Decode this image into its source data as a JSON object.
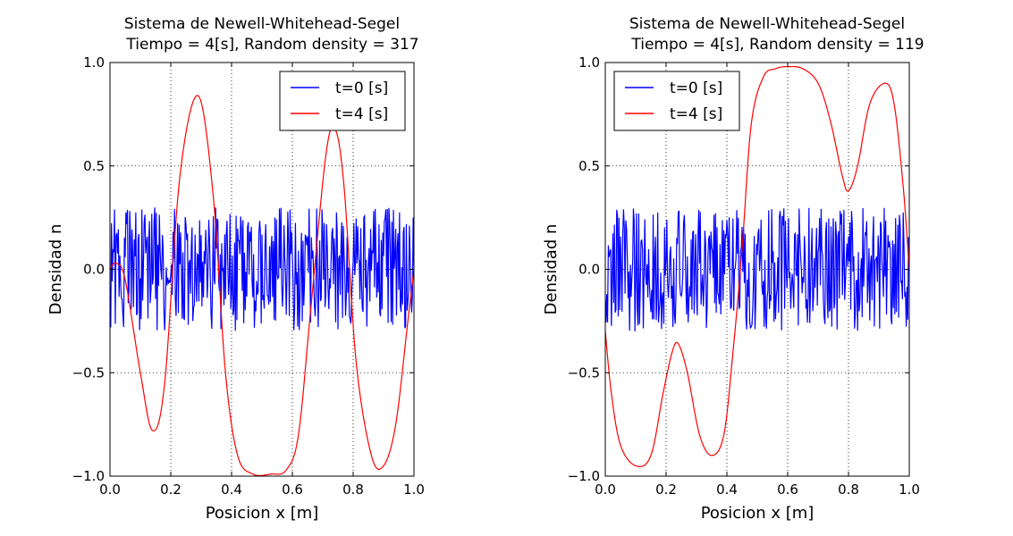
{
  "chart_data": [
    {
      "type": "line",
      "title": "Sistema de Newell-Whitehead-Segel",
      "subtitle": "Tiempo = 4[s], Random density = 317",
      "xlabel": "Posicion x [m]",
      "ylabel": "Densidad n",
      "xlim": [
        0.0,
        1.0
      ],
      "ylim": [
        -1.0,
        1.0
      ],
      "xticks": [
        "0.0",
        "0.2",
        "0.4",
        "0.6",
        "0.8",
        "1.0"
      ],
      "yticks": [
        "1.0",
        "0.5",
        "0.0",
        "−0.5",
        "−1.0"
      ],
      "grid": true,
      "legend_position": "top-right",
      "series": [
        {
          "name": "t=0 [s]",
          "color": "#0000ff",
          "style": "random-noise",
          "amplitude": 0.3,
          "samples": 400,
          "seed": 317
        },
        {
          "name": "t=4 [s]",
          "color": "#ff0000",
          "x": [
            0.0,
            0.02,
            0.05,
            0.1,
            0.14,
            0.18,
            0.23,
            0.29,
            0.34,
            0.38,
            0.42,
            0.47,
            0.53,
            0.58,
            0.62,
            0.66,
            0.71,
            0.74,
            0.77,
            0.81,
            0.86,
            0.9,
            0.94,
            0.98,
            1.0
          ],
          "y": [
            0.0,
            0.03,
            -0.05,
            -0.5,
            -0.78,
            -0.55,
            0.45,
            0.84,
            0.35,
            -0.5,
            -0.9,
            -0.99,
            -0.99,
            -0.97,
            -0.8,
            -0.2,
            0.55,
            0.68,
            0.4,
            -0.45,
            -0.9,
            -0.95,
            -0.75,
            -0.25,
            0.0
          ]
        }
      ]
    },
    {
      "type": "line",
      "title": "Sistema de Newell-Whitehead-Segel",
      "subtitle": "Tiempo = 4[s], Random density = 119",
      "xlabel": "Posicion x [m]",
      "ylabel": "Densidad n",
      "xlim": [
        0.0,
        1.0
      ],
      "ylim": [
        -1.0,
        1.0
      ],
      "xticks": [
        "0.0",
        "0.2",
        "0.4",
        "0.6",
        "0.8",
        "1.0"
      ],
      "yticks": [
        "1.0",
        "0.5",
        "0.0",
        "−0.5",
        "−1.0"
      ],
      "grid": true,
      "legend_position": "top-left",
      "series": [
        {
          "name": "t=0 [s]",
          "color": "#0000ff",
          "style": "random-noise",
          "amplitude": 0.3,
          "samples": 400,
          "seed": 119
        },
        {
          "name": "t=4 [s]",
          "color": "#ff0000",
          "x": [
            0.0,
            0.02,
            0.05,
            0.1,
            0.15,
            0.19,
            0.22,
            0.24,
            0.27,
            0.31,
            0.35,
            0.39,
            0.42,
            0.45,
            0.48,
            0.52,
            0.56,
            0.6,
            0.65,
            0.7,
            0.74,
            0.78,
            0.8,
            0.83,
            0.87,
            0.92,
            0.95,
            0.98,
            1.0
          ],
          "y": [
            -0.3,
            -0.6,
            -0.85,
            -0.95,
            -0.9,
            -0.6,
            -0.4,
            -0.36,
            -0.5,
            -0.8,
            -0.9,
            -0.8,
            -0.4,
            0.1,
            0.7,
            0.93,
            0.97,
            0.98,
            0.97,
            0.9,
            0.72,
            0.45,
            0.38,
            0.5,
            0.8,
            0.9,
            0.8,
            0.4,
            0.0
          ]
        }
      ]
    }
  ]
}
